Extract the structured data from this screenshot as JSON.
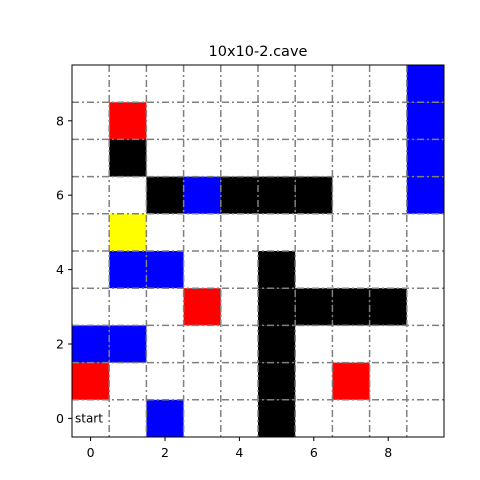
{
  "chart_data": {
    "type": "heatmap",
    "title": "10x10-2.cave",
    "xlabel": "",
    "ylabel": "",
    "grid_size": 10,
    "xlim": [
      -0.5,
      9.5
    ],
    "ylim": [
      -0.5,
      9.5
    ],
    "x_ticks": [
      "0",
      "2",
      "4",
      "6",
      "8"
    ],
    "y_ticks": [
      "0",
      "2",
      "4",
      "6",
      "8"
    ],
    "grid": true,
    "colors": {
      "wall": "#000000",
      "red": "#ff0000",
      "blue": "#0000ff",
      "yellow": "#ffff00",
      "grid_line": "#808080"
    },
    "cells": [
      {
        "x": 9,
        "y": 9,
        "kind": "blue"
      },
      {
        "x": 1,
        "y": 8,
        "kind": "red"
      },
      {
        "x": 9,
        "y": 8,
        "kind": "blue"
      },
      {
        "x": 1,
        "y": 7,
        "kind": "wall"
      },
      {
        "x": 9,
        "y": 7,
        "kind": "blue"
      },
      {
        "x": 2,
        "y": 6,
        "kind": "wall"
      },
      {
        "x": 3,
        "y": 6,
        "kind": "blue"
      },
      {
        "x": 4,
        "y": 6,
        "kind": "wall"
      },
      {
        "x": 5,
        "y": 6,
        "kind": "wall"
      },
      {
        "x": 6,
        "y": 6,
        "kind": "wall"
      },
      {
        "x": 9,
        "y": 6,
        "kind": "blue"
      },
      {
        "x": 1,
        "y": 5,
        "kind": "yellow"
      },
      {
        "x": 1,
        "y": 4,
        "kind": "blue"
      },
      {
        "x": 2,
        "y": 4,
        "kind": "blue"
      },
      {
        "x": 5,
        "y": 4,
        "kind": "wall"
      },
      {
        "x": 3,
        "y": 3,
        "kind": "red"
      },
      {
        "x": 5,
        "y": 3,
        "kind": "wall"
      },
      {
        "x": 6,
        "y": 3,
        "kind": "wall"
      },
      {
        "x": 7,
        "y": 3,
        "kind": "wall"
      },
      {
        "x": 8,
        "y": 3,
        "kind": "wall"
      },
      {
        "x": 0,
        "y": 2,
        "kind": "blue"
      },
      {
        "x": 1,
        "y": 2,
        "kind": "blue"
      },
      {
        "x": 5,
        "y": 2,
        "kind": "wall"
      },
      {
        "x": 0,
        "y": 1,
        "kind": "red"
      },
      {
        "x": 5,
        "y": 1,
        "kind": "wall"
      },
      {
        "x": 7,
        "y": 1,
        "kind": "red"
      },
      {
        "x": 2,
        "y": 0,
        "kind": "blue"
      },
      {
        "x": 5,
        "y": 0,
        "kind": "wall"
      }
    ],
    "annotations": [
      {
        "text": "start",
        "x": 0,
        "y": 0
      }
    ]
  }
}
